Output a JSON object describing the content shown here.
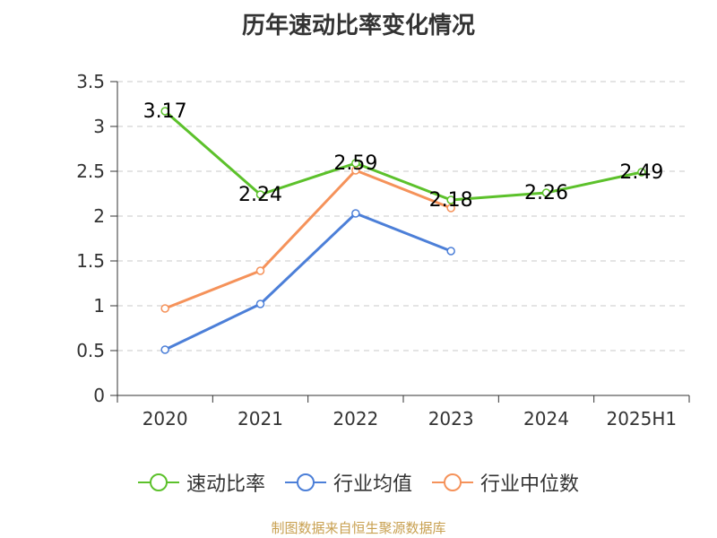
{
  "chart_data": {
    "type": "line",
    "title": "历年速动比率变化情况",
    "categories": [
      "2020",
      "2021",
      "2022",
      "2023",
      "2024",
      "2025H1"
    ],
    "ylim": [
      0,
      3.5
    ],
    "yticks": [
      "0",
      "0.5",
      "1",
      "1.5",
      "2",
      "2.5",
      "3",
      "3.5"
    ],
    "grid": true,
    "legend_position": "bottom",
    "series": [
      {
        "name": "速动比率",
        "color": "#5cc12b",
        "values": [
          3.17,
          2.24,
          2.59,
          2.18,
          2.26,
          2.49
        ],
        "labels": [
          "3.17",
          "2.24",
          "2.59",
          "2.18",
          "2.26",
          "2.49"
        ],
        "show_labels": true
      },
      {
        "name": "行业均值",
        "color": "#4c7fd8",
        "values": [
          0.51,
          1.02,
          2.03,
          1.61,
          null,
          null
        ],
        "show_labels": false
      },
      {
        "name": "行业中位数",
        "color": "#f5925a",
        "values": [
          0.97,
          1.39,
          2.51,
          2.09,
          null,
          null
        ],
        "show_labels": false
      }
    ]
  },
  "footer": {
    "source": "制图数据来自恒生聚源数据库"
  }
}
